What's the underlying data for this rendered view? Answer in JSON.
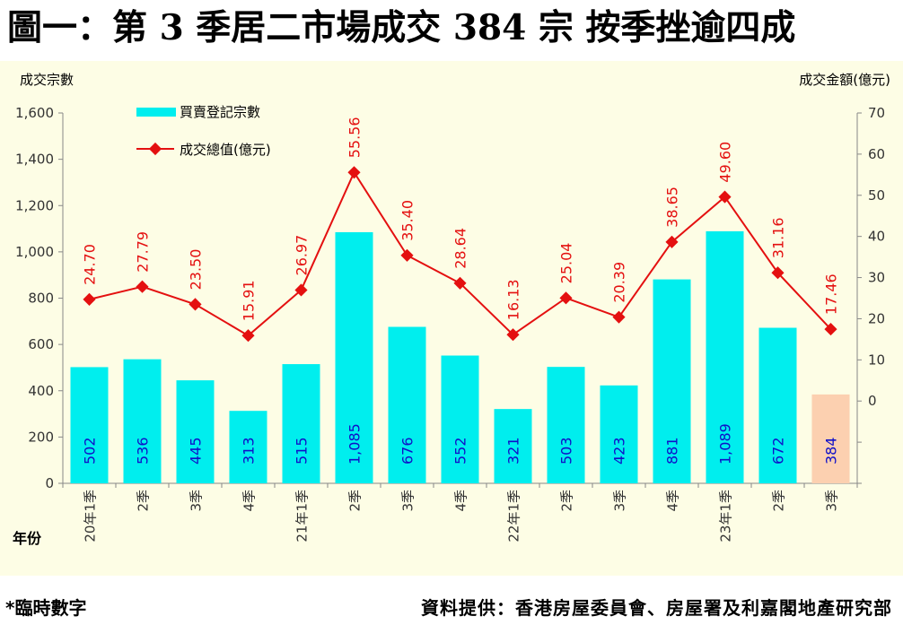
{
  "title": "圖一：第 3 季居二市場成交 384 宗  按季挫逾四成",
  "footnote": "*臨時數字",
  "source": "資料提供：香港房屋委員會、房屋署及利嘉閣地產研究部",
  "colors": {
    "bar": "#00eeee",
    "bar_provisional": "#fcd0b0",
    "line": "#e41010",
    "bar_label": "#1010c8",
    "background": "#fdfde5"
  },
  "chart_data": {
    "type": "bar+line",
    "left_axis_title": "成交宗數",
    "right_axis_title": "成交金額(億元)",
    "x_axis_title": "年份",
    "categories": [
      "20年1季",
      "2季",
      "3季",
      "4季",
      "21年1季",
      "2季",
      "3季",
      "4季",
      "22年1季",
      "2季",
      "3季",
      "4季",
      "23年1季",
      "2季",
      "3季"
    ],
    "left_ylim": [
      0,
      1600
    ],
    "left_ticks": [
      "0",
      "200",
      "400",
      "600",
      "800",
      "1,000",
      "1,200",
      "1,400",
      "1,600"
    ],
    "right_ylim": [
      -20,
      70
    ],
    "right_ticks": [
      "0",
      "10",
      "20",
      "30",
      "40",
      "50",
      "60",
      "70"
    ],
    "series": [
      {
        "name": "買賣登記宗數",
        "type": "bar",
        "axis": "left",
        "values": [
          502,
          536,
          445,
          313,
          515,
          1085,
          676,
          552,
          321,
          503,
          423,
          881,
          1089,
          672,
          384
        ],
        "labels": [
          "502",
          "536",
          "445",
          "313",
          "515",
          "1,085",
          "676",
          "552",
          "321",
          "503",
          "423",
          "881",
          "1,089",
          "672",
          "384"
        ],
        "provisional_index": 14
      },
      {
        "name": "成交總值(億元)",
        "type": "line",
        "axis": "right",
        "values": [
          24.7,
          27.79,
          23.5,
          15.91,
          26.97,
          55.56,
          35.4,
          28.64,
          16.13,
          25.04,
          20.39,
          38.65,
          49.6,
          31.16,
          17.46
        ],
        "labels": [
          "24.70",
          "27.79",
          "23.50",
          "15.91",
          "26.97",
          "55.56",
          "35.40",
          "28.64",
          "16.13",
          "25.04",
          "20.39",
          "38.65",
          "49.60",
          "31.16",
          "17.46"
        ]
      }
    ],
    "grid": false,
    "legend_position": "top-left"
  }
}
